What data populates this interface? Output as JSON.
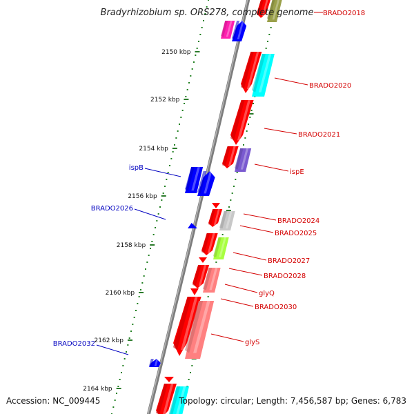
{
  "title": "Bradyrhizobium sp. ORS278, complete genome",
  "footer": {
    "accession": "Accession: NC_009445",
    "summary": "Topology: circular; Length: 7,456,587 bp; Genes: 6,783"
  },
  "colors": {
    "backbone": "#8c8c8c",
    "tick_label": "#111111",
    "ruler_dots": "#208020",
    "ruler_ticks": "#2a7a2a",
    "forward_label": "#d40000",
    "reverse_label": "#0000c0"
  },
  "ruler": {
    "ticks": [
      "2150 kbp",
      "2152 kbp",
      "2154 kbp",
      "2156 kbp",
      "2158 kbp",
      "2160 kbp",
      "2162 kbp",
      "2164 kbp"
    ]
  },
  "genes": [
    {
      "id": "g-2018a",
      "strand": "forward",
      "color": "#ff0000",
      "label": "BRADO2018"
    },
    {
      "id": "g-2018b",
      "strand": "forward",
      "color": "#9aa04a",
      "label": ""
    },
    {
      "id": "g-rev1",
      "strand": "reverse",
      "color": "#ff1fb0",
      "label": ""
    },
    {
      "id": "g-rev2",
      "strand": "reverse",
      "color": "#0000ff",
      "label": ""
    },
    {
      "id": "g-2020a",
      "strand": "forward",
      "color": "#ff0000",
      "label": ""
    },
    {
      "id": "g-2020b",
      "strand": "forward",
      "color": "#00ffff",
      "label": "BRADO2020"
    },
    {
      "id": "g-2021",
      "strand": "forward",
      "color": "#ff0000",
      "label": "BRADO2021"
    },
    {
      "id": "g-ispE-a",
      "strand": "forward",
      "color": "#ff0000",
      "label": ""
    },
    {
      "id": "g-ispE-b",
      "strand": "forward",
      "color": "#7a5ad0",
      "label": "ispE"
    },
    {
      "id": "g-ispB-a",
      "strand": "reverse",
      "color": "#0000ff",
      "label": ""
    },
    {
      "id": "g-ispB-b",
      "strand": "reverse",
      "color": "#0000ff",
      "label": "ispB"
    },
    {
      "id": "g-2026",
      "strand": "reverse",
      "color": "#0000ff",
      "label": "BRADO2026"
    },
    {
      "id": "g-2024a",
      "strand": "forward",
      "color": "#ff0000",
      "label": ""
    },
    {
      "id": "g-2024b",
      "strand": "forward",
      "color": "#ff0000",
      "label": "BRADO2024"
    },
    {
      "id": "g-2025",
      "strand": "forward",
      "color": "#c8c8c8",
      "label": "BRADO2025"
    },
    {
      "id": "g-2027a",
      "strand": "forward",
      "color": "#ff0000",
      "label": ""
    },
    {
      "id": "g-2027b",
      "strand": "forward",
      "color": "#a8ff40",
      "label": "BRADO2027"
    },
    {
      "id": "g-2028a",
      "strand": "forward",
      "color": "#ff0000",
      "label": ""
    },
    {
      "id": "g-2028b",
      "strand": "forward",
      "color": "#ff0000",
      "label": "BRADO2028"
    },
    {
      "id": "g-glyQa",
      "strand": "forward",
      "color": "#ff8080",
      "label": "glyQ"
    },
    {
      "id": "g-2030",
      "strand": "forward",
      "color": "#ff0000",
      "label": "BRADO2030"
    },
    {
      "id": "g-glyS",
      "strand": "forward",
      "color": "#ff8080",
      "label": "glyS"
    },
    {
      "id": "g-2032",
      "strand": "reverse",
      "color": "#0000ff",
      "label": "BRADO2032"
    },
    {
      "id": "g-last-a",
      "strand": "forward",
      "color": "#ff0000",
      "label": ""
    },
    {
      "id": "g-last-b",
      "strand": "forward",
      "color": "#ff0000",
      "label": ""
    },
    {
      "id": "g-last-c",
      "strand": "forward",
      "color": "#00ffff",
      "label": ""
    }
  ]
}
